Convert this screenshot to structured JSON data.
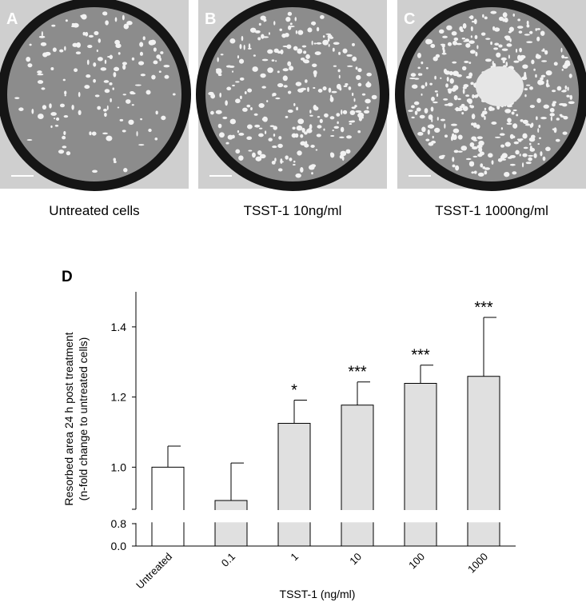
{
  "panels": [
    {
      "label": "A",
      "caption": "Untreated cells"
    },
    {
      "label": "B",
      "caption": "TSST-1 10ng/ml"
    },
    {
      "label": "C",
      "caption": "TSST-1 1000ng/ml"
    }
  ],
  "chart_data": {
    "type": "bar",
    "panel_label": "D",
    "x_label": "TSST-1 (ng/ml)",
    "y_label": [
      "Resorbed area 24 h post treatment",
      "(n-fold change to untreated cells)"
    ],
    "categories": [
      "Untreated",
      "0.1",
      "1",
      "10",
      "100",
      "1000"
    ],
    "values": [
      1.0,
      0.905,
      1.125,
      1.177,
      1.239,
      1.259
    ],
    "errors": [
      0.06,
      0.107,
      0.066,
      0.066,
      0.052,
      0.168
    ],
    "annotations": [
      null,
      null,
      "*",
      "***",
      "***",
      "***"
    ],
    "colors": [
      "#ffffff",
      "#e0e0e0",
      "#e0e0e0",
      "#e0e0e0",
      "#e0e0e0",
      "#e0e0e0"
    ],
    "ylim": [
      0,
      1.5
    ],
    "axis_break": [
      0.82,
      0.88
    ],
    "yticks": [
      {
        "value": 0,
        "label": "0.0"
      },
      {
        "value": 0.8,
        "label": "0.8"
      },
      {
        "value": 1,
        "label": "1.0"
      },
      {
        "value": 1.2,
        "label": "1.2"
      },
      {
        "value": 1.4,
        "label": "1.4"
      }
    ]
  }
}
